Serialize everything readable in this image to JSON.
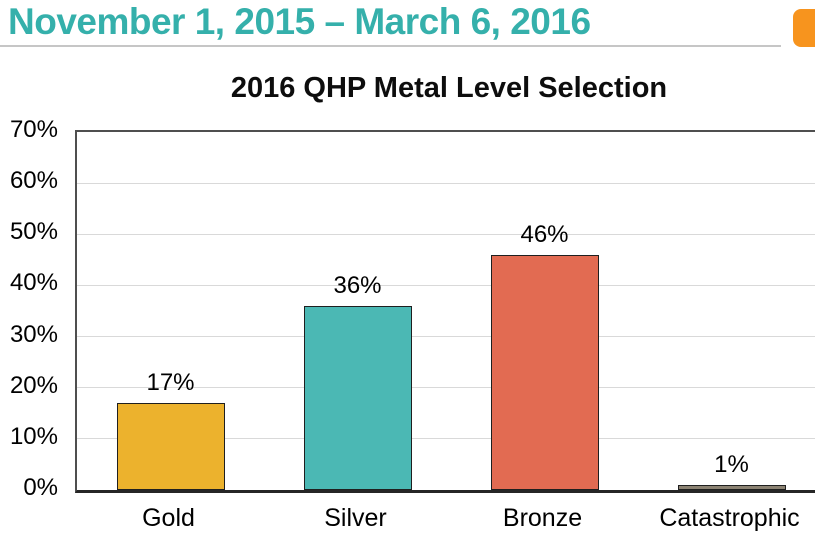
{
  "header": {
    "date_range": "November 1, 2015 – March 6, 2016",
    "text_color": "#35B0AB",
    "tab_color": "#F7941E"
  },
  "chart_data": {
    "type": "bar",
    "title": "2016 QHP Metal Level Selection",
    "categories": [
      "Gold",
      "Silver",
      "Bronze",
      "Catastrophic"
    ],
    "values": [
      17,
      36,
      46,
      1
    ],
    "value_labels": [
      "17%",
      "36%",
      "46%",
      "1%"
    ],
    "bar_colors": [
      "#ECB22D",
      "#4BB8B4",
      "#E26B52",
      "#8C8373"
    ],
    "xlabel": "",
    "ylabel": "",
    "ylim": [
      0,
      70
    ],
    "ytick_step": 10,
    "ytick_labels": [
      "0%",
      "10%",
      "20%",
      "30%",
      "40%",
      "50%",
      "60%",
      "70%"
    ],
    "grid": true,
    "legend_position": "none"
  }
}
